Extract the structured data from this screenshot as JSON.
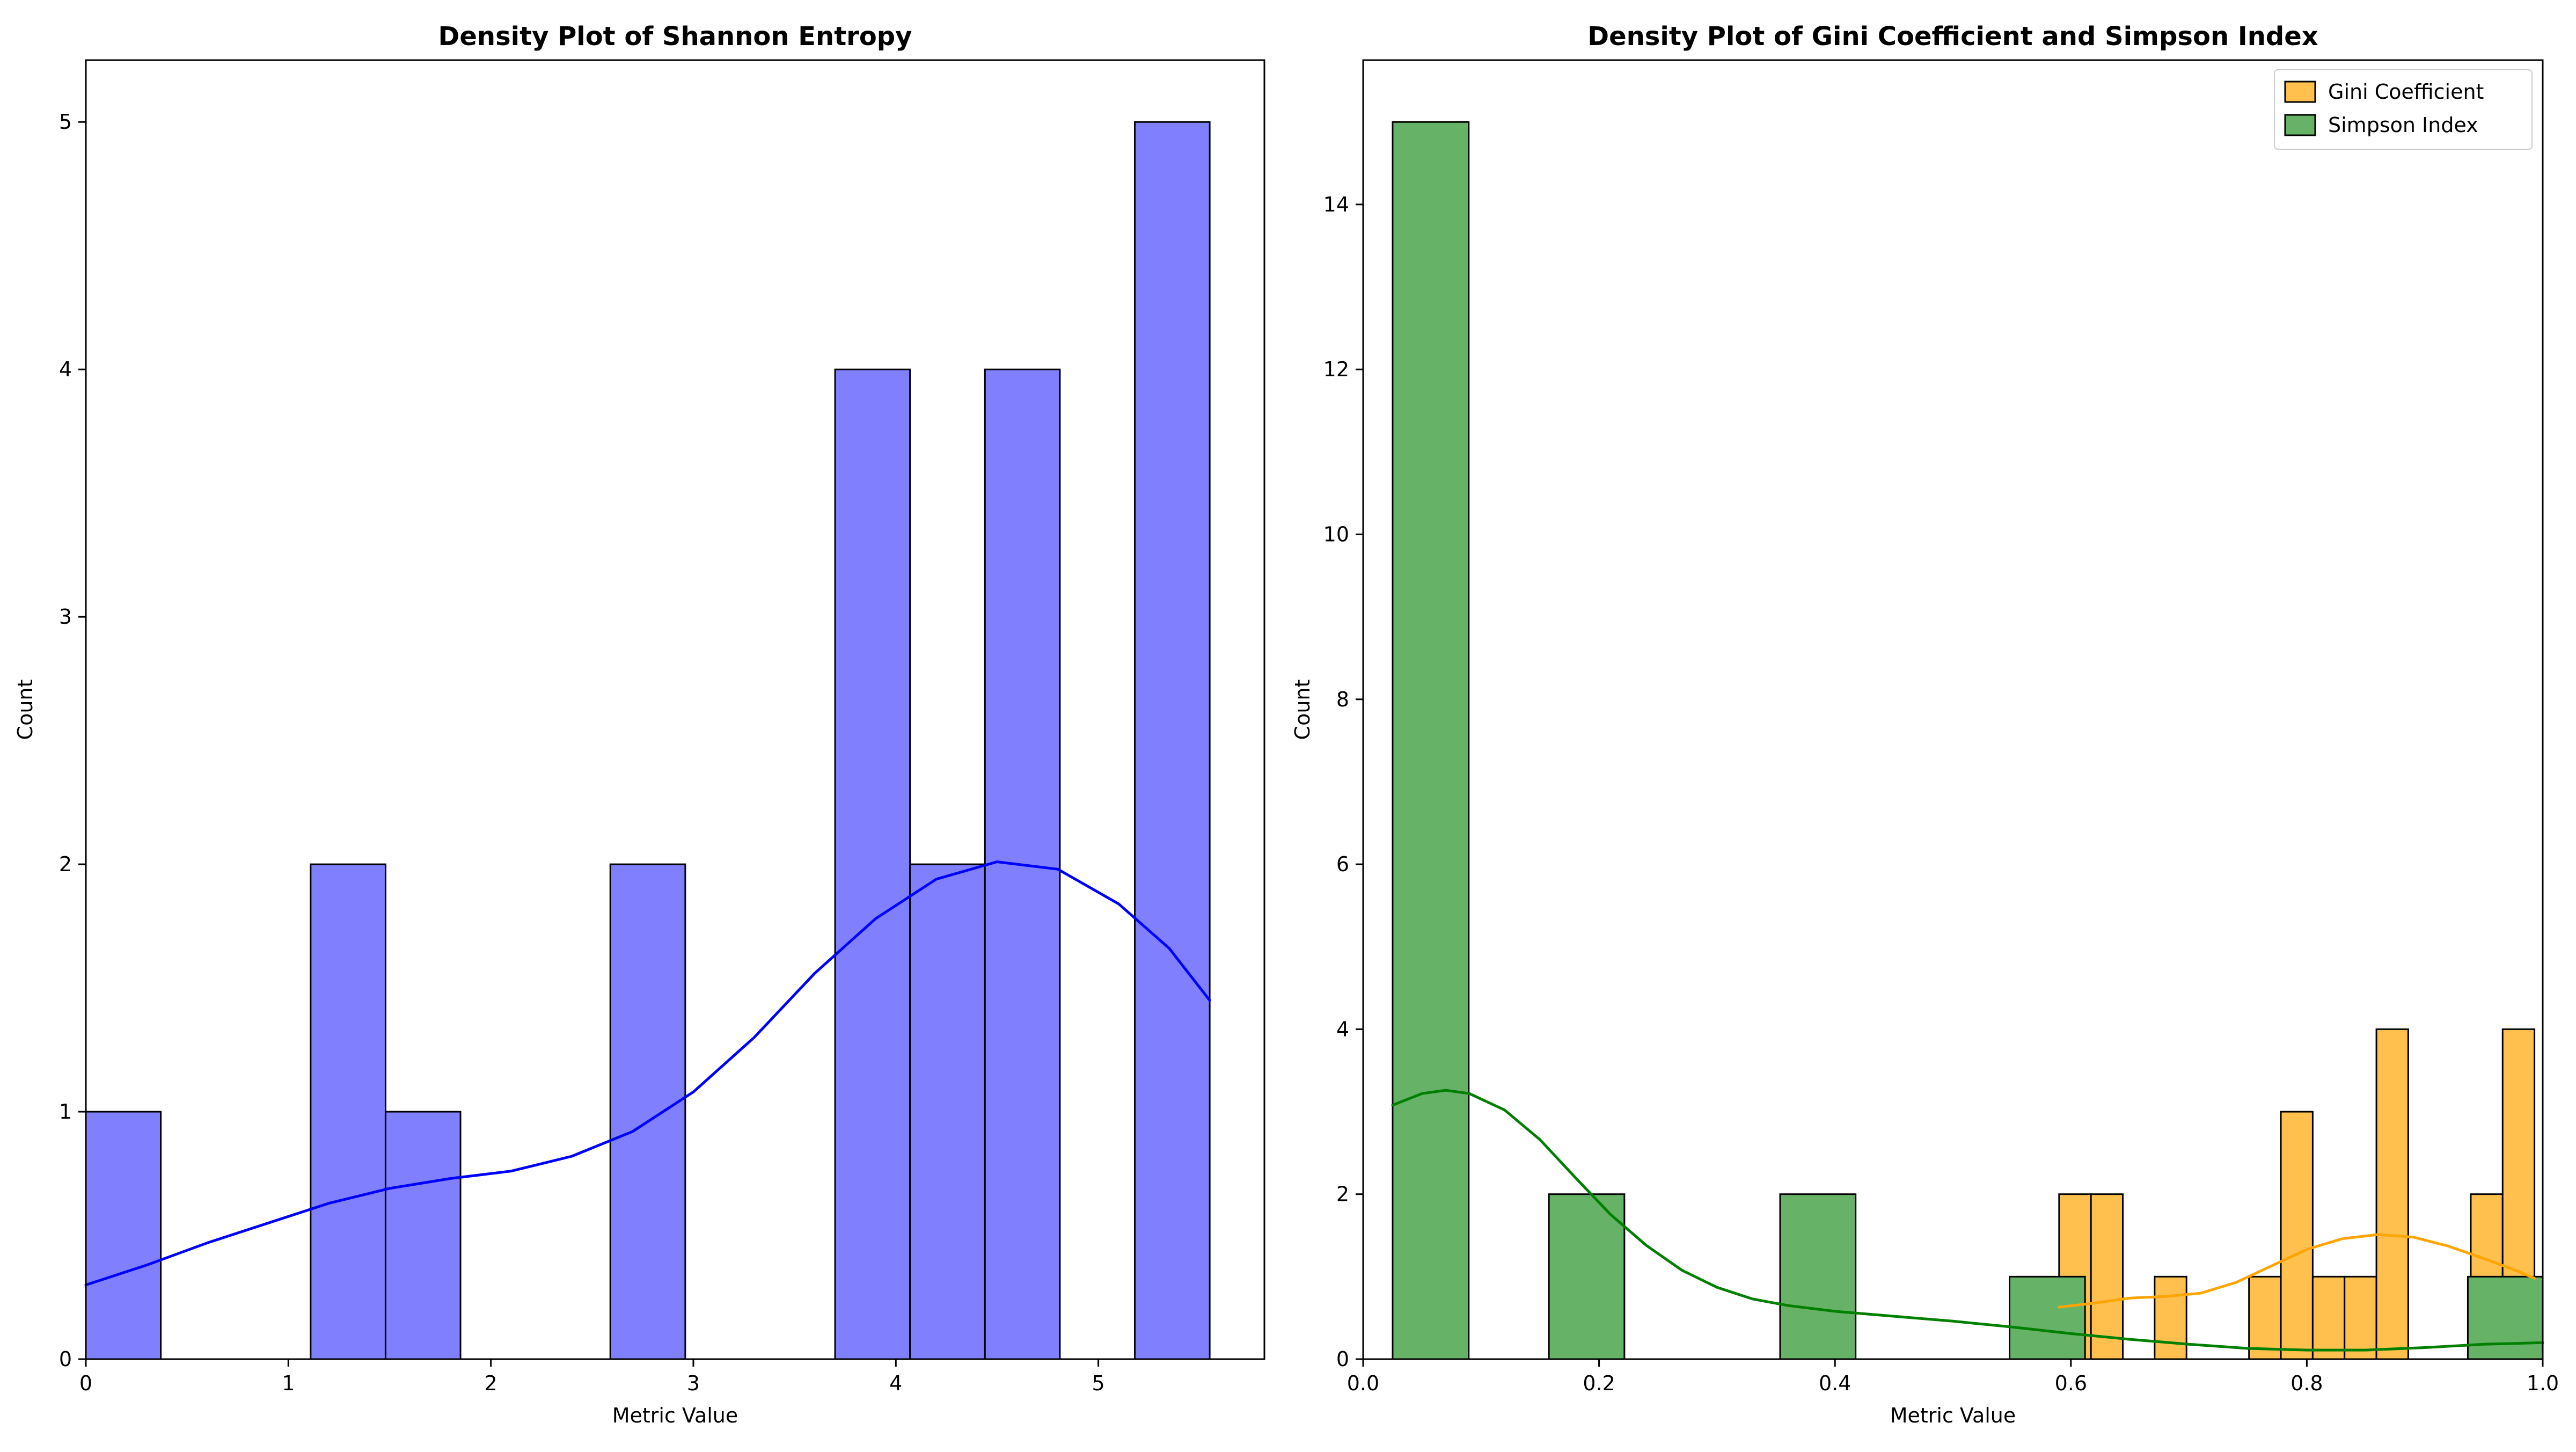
{
  "chart_data": [
    {
      "type": "bar",
      "subtype": "histogram-with-kde",
      "title": "Density Plot of Shannon Entropy",
      "xlabel": "Metric Value",
      "ylabel": "Count",
      "xlim": [
        0,
        5.82
      ],
      "ylim": [
        0,
        5.25
      ],
      "xticks": [
        0,
        1,
        2,
        3,
        4,
        5
      ],
      "yticks": [
        0,
        1,
        2,
        3,
        4,
        5
      ],
      "grid": false,
      "legend": null,
      "series": [
        {
          "color": "#8080ff",
          "edge_color": "#000000",
          "kde_color": "#0000ff",
          "bins": [
            {
              "x0": 0.0,
              "x1": 0.37,
              "count": 1
            },
            {
              "x0": 1.11,
              "x1": 1.48,
              "count": 2
            },
            {
              "x0": 1.48,
              "x1": 1.85,
              "count": 1
            },
            {
              "x0": 2.59,
              "x1": 2.96,
              "count": 2
            },
            {
              "x0": 3.7,
              "x1": 4.07,
              "count": 4
            },
            {
              "x0": 4.07,
              "x1": 4.44,
              "count": 2
            },
            {
              "x0": 4.44,
              "x1": 4.81,
              "count": 4
            },
            {
              "x0": 5.18,
              "x1": 5.55,
              "count": 5
            }
          ],
          "kde": [
            [
              0.0,
              0.3
            ],
            [
              0.3,
              0.38
            ],
            [
              0.6,
              0.47
            ],
            [
              0.9,
              0.55
            ],
            [
              1.2,
              0.63
            ],
            [
              1.5,
              0.69
            ],
            [
              1.8,
              0.73
            ],
            [
              2.1,
              0.76
            ],
            [
              2.4,
              0.82
            ],
            [
              2.7,
              0.92
            ],
            [
              3.0,
              1.08
            ],
            [
              3.3,
              1.3
            ],
            [
              3.6,
              1.56
            ],
            [
              3.9,
              1.78
            ],
            [
              4.2,
              1.94
            ],
            [
              4.5,
              2.01
            ],
            [
              4.8,
              1.98
            ],
            [
              5.1,
              1.84
            ],
            [
              5.35,
              1.66
            ],
            [
              5.55,
              1.45
            ]
          ]
        }
      ]
    },
    {
      "type": "bar",
      "subtype": "histogram-with-kde",
      "title": "Density Plot of Gini Coefficient and Simpson Index",
      "xlabel": "Metric Value",
      "ylabel": "Count",
      "xlim": [
        0.0,
        1.0
      ],
      "ylim": [
        0,
        15.75
      ],
      "xticks": [
        0.0,
        0.2,
        0.4,
        0.6,
        0.8,
        1.0
      ],
      "yticks": [
        0,
        2,
        4,
        6,
        8,
        10,
        12,
        14
      ],
      "grid": false,
      "legend": {
        "position": "top-right"
      },
      "series": [
        {
          "name": "Gini Coefficient",
          "color": "#ffc04d",
          "edge_color": "#000000",
          "kde_color": "#ffa500",
          "bins": [
            {
              "x0": 0.59,
              "x1": 0.617,
              "count": 2
            },
            {
              "x0": 0.617,
              "x1": 0.644,
              "count": 2
            },
            {
              "x0": 0.671,
              "x1": 0.698,
              "count": 1
            },
            {
              "x0": 0.751,
              "x1": 0.778,
              "count": 1
            },
            {
              "x0": 0.778,
              "x1": 0.805,
              "count": 3
            },
            {
              "x0": 0.805,
              "x1": 0.832,
              "count": 1
            },
            {
              "x0": 0.832,
              "x1": 0.859,
              "count": 1
            },
            {
              "x0": 0.859,
              "x1": 0.886,
              "count": 4
            },
            {
              "x0": 0.939,
              "x1": 0.966,
              "count": 2
            },
            {
              "x0": 0.966,
              "x1": 0.993,
              "count": 4
            }
          ],
          "kde": [
            [
              0.59,
              0.63
            ],
            [
              0.62,
              0.68
            ],
            [
              0.65,
              0.74
            ],
            [
              0.68,
              0.76
            ],
            [
              0.71,
              0.8
            ],
            [
              0.74,
              0.93
            ],
            [
              0.77,
              1.13
            ],
            [
              0.8,
              1.33
            ],
            [
              0.83,
              1.46
            ],
            [
              0.86,
              1.51
            ],
            [
              0.89,
              1.48
            ],
            [
              0.92,
              1.37
            ],
            [
              0.95,
              1.22
            ],
            [
              0.98,
              1.06
            ],
            [
              0.993,
              0.98
            ]
          ]
        },
        {
          "name": "Simpson Index",
          "color": "#66b266",
          "edge_color": "#000000",
          "kde_color": "#008000",
          "bins": [
            {
              "x0": 0.025,
              "x1": 0.0895,
              "count": 15
            },
            {
              "x0": 0.1575,
              "x1": 0.2215,
              "count": 2
            },
            {
              "x0": 0.3535,
              "x1": 0.4175,
              "count": 2
            },
            {
              "x0": 0.548,
              "x1": 0.612,
              "count": 1
            },
            {
              "x0": 0.9365,
              "x1": 1.0005,
              "count": 1
            }
          ],
          "kde": [
            [
              0.025,
              3.08
            ],
            [
              0.05,
              3.22
            ],
            [
              0.07,
              3.26
            ],
            [
              0.09,
              3.22
            ],
            [
              0.12,
              3.02
            ],
            [
              0.15,
              2.66
            ],
            [
              0.18,
              2.2
            ],
            [
              0.21,
              1.75
            ],
            [
              0.24,
              1.38
            ],
            [
              0.27,
              1.08
            ],
            [
              0.3,
              0.87
            ],
            [
              0.33,
              0.73
            ],
            [
              0.36,
              0.65
            ],
            [
              0.4,
              0.58
            ],
            [
              0.45,
              0.52
            ],
            [
              0.5,
              0.46
            ],
            [
              0.55,
              0.39
            ],
            [
              0.6,
              0.31
            ],
            [
              0.65,
              0.24
            ],
            [
              0.7,
              0.18
            ],
            [
              0.75,
              0.13
            ],
            [
              0.8,
              0.11
            ],
            [
              0.85,
              0.11
            ],
            [
              0.9,
              0.14
            ],
            [
              0.95,
              0.18
            ],
            [
              1.0,
              0.2
            ]
          ]
        }
      ]
    }
  ]
}
